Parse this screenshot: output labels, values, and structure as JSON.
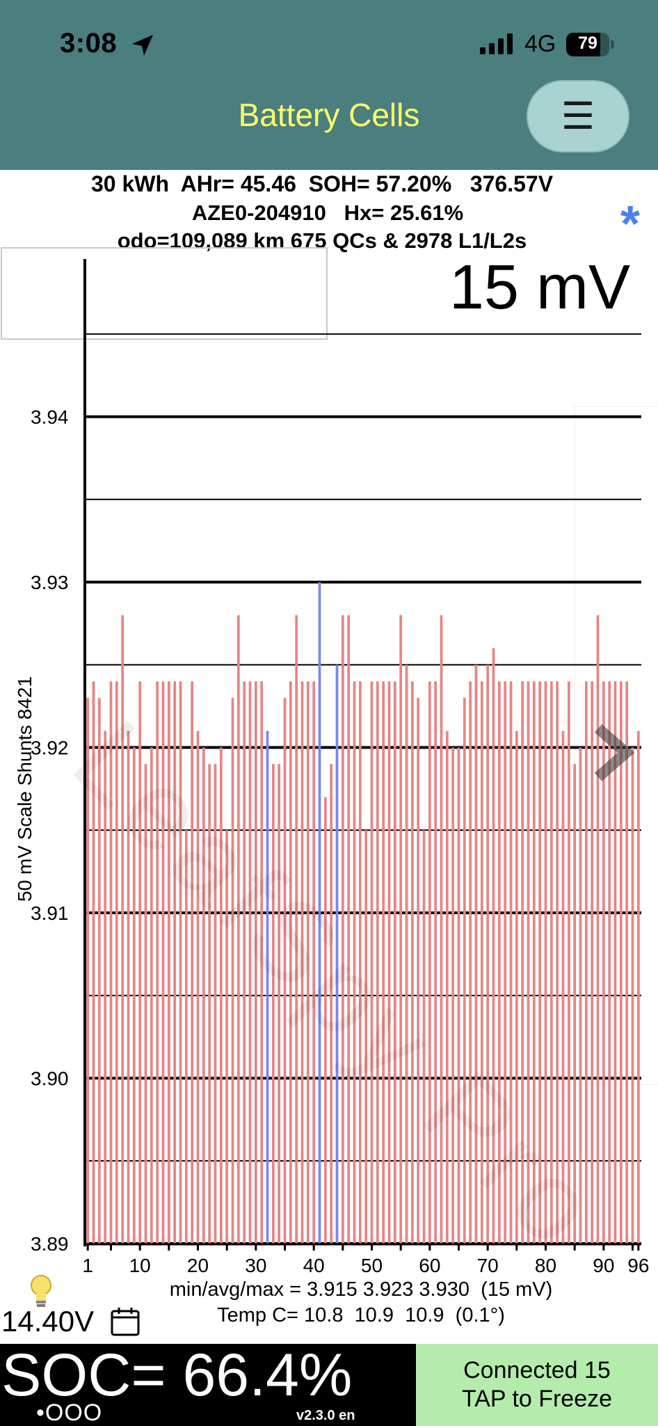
{
  "status_bar": {
    "time": "3:08",
    "network": "4G",
    "battery_level": "79",
    "battery_fraction": 0.79
  },
  "nav": {
    "title": "Battery Cells",
    "menu_icon": "☰"
  },
  "info": {
    "line1": "30 kWh  AHr= 45.46  SOH= 57.20%   376.57V",
    "line2": "AZE0-204910   Hx= 25.61%",
    "line3": "odo=109,089 km 675 QCs & 2978 L1/L2s",
    "bluetooth_icon": "*"
  },
  "scale_readout": "15 mV",
  "watermark": "LeafSpy Pro",
  "chart_data": {
    "type": "bar",
    "title": "",
    "ylabel": "50 mV Scale   Shunts 8421",
    "ylim": [
      3.89,
      3.945
    ],
    "y_ticks": [
      "3.89",
      "3.90",
      "3.91",
      "3.92",
      "3.93",
      "3.94"
    ],
    "x_ticks": [
      "1",
      "10",
      "20",
      "30",
      "40",
      "50",
      "60",
      "70",
      "80",
      "90",
      "96"
    ],
    "grid": true,
    "bar_color": "#e68585",
    "shunt_color": "#7b86f0",
    "cells": [
      1,
      2,
      3,
      4,
      5,
      6,
      7,
      8,
      9,
      10,
      11,
      12,
      13,
      14,
      15,
      16,
      17,
      18,
      19,
      20,
      21,
      22,
      23,
      24,
      25,
      26,
      27,
      28,
      29,
      30,
      31,
      32,
      33,
      34,
      35,
      36,
      37,
      38,
      39,
      40,
      41,
      42,
      43,
      44,
      45,
      46,
      47,
      48,
      49,
      50,
      51,
      52,
      53,
      54,
      55,
      56,
      57,
      58,
      59,
      60,
      61,
      62,
      63,
      64,
      65,
      66,
      67,
      68,
      69,
      70,
      71,
      72,
      73,
      74,
      75,
      76,
      77,
      78,
      79,
      80,
      81,
      82,
      83,
      84,
      85,
      86,
      87,
      88,
      89,
      90,
      91,
      92,
      93,
      94,
      95,
      96
    ],
    "values": [
      3.923,
      3.924,
      3.923,
      3.921,
      3.924,
      3.924,
      3.928,
      3.921,
      3.92,
      3.924,
      3.919,
      3.92,
      3.924,
      3.924,
      3.924,
      3.924,
      3.924,
      3.915,
      3.924,
      3.921,
      3.92,
      3.919,
      3.919,
      3.92,
      3.915,
      3.923,
      3.928,
      3.924,
      3.924,
      3.924,
      3.924,
      3.921,
      3.919,
      3.919,
      3.923,
      3.924,
      3.928,
      3.924,
      3.924,
      3.924,
      3.93,
      3.917,
      3.919,
      3.925,
      3.928,
      3.928,
      3.924,
      3.924,
      3.915,
      3.924,
      3.924,
      3.924,
      3.924,
      3.924,
      3.928,
      3.925,
      3.924,
      3.923,
      3.915,
      3.924,
      3.924,
      3.928,
      3.921,
      3.92,
      3.92,
      3.923,
      3.924,
      3.925,
      3.924,
      3.925,
      3.926,
      3.924,
      3.924,
      3.924,
      3.921,
      3.924,
      3.924,
      3.924,
      3.924,
      3.924,
      3.924,
      3.924,
      3.921,
      3.924,
      3.919,
      3.92,
      3.924,
      3.924,
      3.928,
      3.924,
      3.924,
      3.924,
      3.924,
      3.924,
      3.92,
      3.921
    ],
    "shunted_cells": [
      32,
      41,
      44
    ]
  },
  "stats": {
    "minavgmax": "min/avg/max = 3.915 3.923 3.930  (15 mV)",
    "temp": "Temp C= 10.8  10.9  10.9  (0.1°)",
    "aux_voltage": "14.40V"
  },
  "bottom": {
    "soc": "SOC= 66.4%",
    "page_dots": "•OOO",
    "version": "v2.3.0 en",
    "connect_line1": "Connected 15",
    "connect_line2": "TAP to Freeze"
  }
}
